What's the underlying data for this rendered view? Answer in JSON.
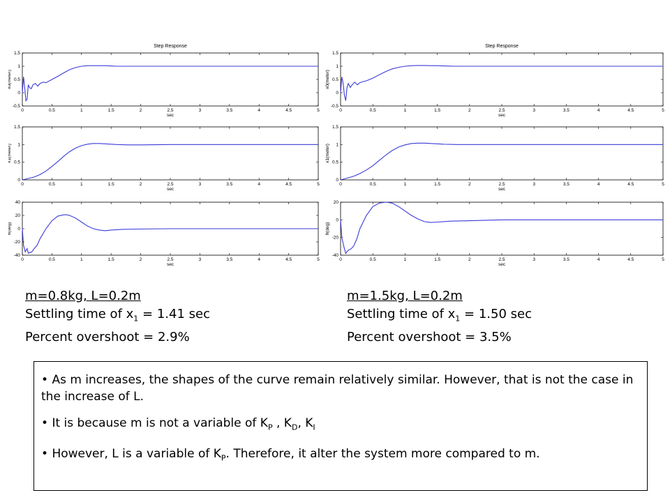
{
  "chart_data": [
    {
      "type": "line",
      "title": "Step Response",
      "panels": [
        {
          "ylabel": "x0(meter)",
          "xlabel": "sec",
          "xlim": [
            0,
            5
          ],
          "ylim": [
            -0.5,
            1.5
          ],
          "xticks": [
            "0",
            "0.5",
            "1",
            "1.5",
            "2",
            "2.5",
            "3",
            "3.5",
            "4",
            "4.5",
            "5"
          ],
          "yticks": [
            "-0.5",
            "0",
            "0.5",
            "1",
            "1.5"
          ],
          "series": [
            {
              "x": [
                0,
                0.02,
                0.04,
                0.06,
                0.08,
                0.1,
                0.12,
                0.15,
                0.18,
                0.22,
                0.26,
                0.3,
                0.35,
                0.4,
                0.5,
                0.6,
                0.7,
                0.8,
                0.9,
                1.0,
                1.1,
                1.2,
                1.3,
                1.4,
                1.5,
                1.6,
                1.8,
                2.0,
                2.5,
                3,
                3.5,
                4,
                4.5,
                5
              ],
              "y": [
                0,
                0.6,
                0.2,
                -0.3,
                -0.25,
                0.3,
                0.2,
                0.15,
                0.3,
                0.35,
                0.25,
                0.35,
                0.4,
                0.38,
                0.5,
                0.62,
                0.75,
                0.87,
                0.95,
                1.0,
                1.02,
                1.02,
                1.02,
                1.02,
                1.01,
                1.0,
                1.0,
                1.0,
                1.0,
                1.0,
                1.0,
                1.0,
                1.0,
                1.0
              ]
            }
          ]
        },
        {
          "ylabel": "x1(meter)",
          "xlabel": "sec",
          "xlim": [
            0,
            5
          ],
          "ylim": [
            0,
            1.5
          ],
          "xticks": [
            "0",
            "0.5",
            "1",
            "1.5",
            "2",
            "2.5",
            "3",
            "3.5",
            "4",
            "4.5",
            "5"
          ],
          "yticks": [
            "0",
            "0.5",
            "1",
            "1.5"
          ],
          "series": [
            {
              "x": [
                0,
                0.1,
                0.2,
                0.3,
                0.4,
                0.5,
                0.6,
                0.7,
                0.8,
                0.9,
                1.0,
                1.1,
                1.2,
                1.3,
                1.4,
                1.5,
                1.6,
                1.8,
                2.0,
                2.5,
                3,
                3.5,
                4,
                4.5,
                5
              ],
              "y": [
                0,
                0.04,
                0.08,
                0.15,
                0.25,
                0.38,
                0.52,
                0.67,
                0.8,
                0.9,
                0.97,
                1.01,
                1.03,
                1.03,
                1.02,
                1.01,
                1.0,
                0.99,
                0.99,
                1.0,
                1.0,
                1.0,
                1.0,
                1.0,
                1.0
              ]
            }
          ]
        },
        {
          "ylabel": "θ(deg)",
          "xlabel": "sec",
          "xlim": [
            0,
            5
          ],
          "ylim": [
            -40,
            40
          ],
          "xticks": [
            "0",
            "0.5",
            "1",
            "1.5",
            "2",
            "2.5",
            "3",
            "3.5",
            "4",
            "4.5",
            "5"
          ],
          "yticks": [
            "-40",
            "-20",
            "0",
            "20",
            "40"
          ],
          "series": [
            {
              "x": [
                0,
                0.02,
                0.05,
                0.08,
                0.1,
                0.13,
                0.16,
                0.2,
                0.25,
                0.3,
                0.4,
                0.5,
                0.6,
                0.7,
                0.75,
                0.8,
                0.9,
                1.0,
                1.1,
                1.2,
                1.3,
                1.4,
                1.5,
                1.7,
                2,
                2.5,
                3,
                3.5,
                4,
                4.5,
                5
              ],
              "y": [
                0,
                -25,
                -35,
                -30,
                -37,
                -36,
                -35,
                -30,
                -25,
                -15,
                0,
                12,
                19,
                21,
                21,
                20,
                16,
                10,
                4,
                0,
                -2,
                -3,
                -2,
                -1,
                -0.5,
                0,
                0,
                0,
                0,
                0,
                0
              ]
            }
          ]
        }
      ]
    },
    {
      "type": "line",
      "title": "Step Response",
      "panels": [
        {
          "ylabel": "x0(meter)",
          "xlabel": "sec",
          "xlim": [
            0,
            5
          ],
          "ylim": [
            -0.5,
            1.5
          ],
          "xticks": [
            "0",
            "0.5",
            "1",
            "1.5",
            "2",
            "2.5",
            "3",
            "3.5",
            "4",
            "4.5",
            "5"
          ],
          "yticks": [
            "-0.5",
            "0",
            "0.5",
            "1",
            "1.5"
          ],
          "series": [
            {
              "x": [
                0,
                0.02,
                0.04,
                0.06,
                0.08,
                0.1,
                0.12,
                0.15,
                0.18,
                0.22,
                0.26,
                0.3,
                0.35,
                0.4,
                0.5,
                0.6,
                0.7,
                0.8,
                0.9,
                1.0,
                1.1,
                1.2,
                1.3,
                1.4,
                1.5,
                1.6,
                1.8,
                2.0,
                2.5,
                3,
                3.5,
                4,
                4.5,
                5
              ],
              "y": [
                0,
                0.6,
                0.35,
                -0.1,
                -0.3,
                0.2,
                0.35,
                0.2,
                0.3,
                0.4,
                0.3,
                0.38,
                0.42,
                0.45,
                0.55,
                0.68,
                0.8,
                0.9,
                0.96,
                1.0,
                1.02,
                1.03,
                1.03,
                1.02,
                1.02,
                1.01,
                1.0,
                1.0,
                1.0,
                1.0,
                1.0,
                1.0,
                1.0,
                1.0
              ]
            }
          ]
        },
        {
          "ylabel": "x1(meter)",
          "xlabel": "sec",
          "xlim": [
            0,
            5
          ],
          "ylim": [
            0,
            1.5
          ],
          "xticks": [
            "0",
            "0.5",
            "1",
            "1.5",
            "2",
            "2.5",
            "3",
            "3.5",
            "4",
            "4.5",
            "5"
          ],
          "yticks": [
            "0",
            "0.5",
            "1",
            "1.5"
          ],
          "series": [
            {
              "x": [
                0,
                0.1,
                0.2,
                0.3,
                0.4,
                0.5,
                0.6,
                0.7,
                0.8,
                0.9,
                1.0,
                1.1,
                1.2,
                1.3,
                1.4,
                1.5,
                1.6,
                1.8,
                2.0,
                2.5,
                3,
                3.5,
                4,
                4.5,
                5
              ],
              "y": [
                0,
                0.05,
                0.1,
                0.18,
                0.28,
                0.4,
                0.55,
                0.7,
                0.83,
                0.93,
                0.99,
                1.03,
                1.04,
                1.04,
                1.03,
                1.02,
                1.01,
                1.0,
                1.0,
                1.0,
                1.0,
                1.0,
                1.0,
                1.0,
                1.0
              ]
            }
          ]
        },
        {
          "ylabel": "θ(deg)",
          "xlabel": "sec",
          "xlim": [
            0,
            5
          ],
          "ylim": [
            -40,
            20
          ],
          "xticks": [
            "0",
            "0.5",
            "1",
            "1.5",
            "2",
            "2.5",
            "3",
            "3.5",
            "4",
            "4.5",
            "5"
          ],
          "yticks": [
            "-40",
            "-20",
            "0",
            "20"
          ],
          "series": [
            {
              "x": [
                0,
                0.02,
                0.05,
                0.08,
                0.1,
                0.13,
                0.16,
                0.2,
                0.25,
                0.3,
                0.4,
                0.5,
                0.6,
                0.7,
                0.75,
                0.8,
                0.9,
                1.0,
                1.1,
                1.2,
                1.3,
                1.4,
                1.5,
                1.7,
                2,
                2.5,
                3,
                3.5,
                4,
                4.5,
                5
              ],
              "y": [
                0,
                -20,
                -30,
                -38,
                -36,
                -34,
                -33,
                -30,
                -22,
                -10,
                5,
                15,
                19,
                20,
                19.5,
                19,
                15,
                10,
                5,
                1,
                -2,
                -3,
                -2.5,
                -1.5,
                -1,
                0,
                0,
                0,
                0,
                0,
                0
              ]
            }
          ]
        }
      ]
    }
  ],
  "captions": {
    "left": {
      "line1": "m=0.8kg,   L=0.2m",
      "line2_pre": "Settling time of x",
      "line2_sub": "1",
      "line2_post": " = 1.41 sec",
      "line3": "Percent overshoot = 2.9%"
    },
    "right": {
      "line1": "m=1.5kg,   L=0.2m",
      "line2_pre": "Settling time of x",
      "line2_sub": "1",
      "line2_post": " = 1.50 sec",
      "line3": "Percent overshoot = 3.5%"
    }
  },
  "notes": {
    "b1": "As m increases, the shapes of the curve remain relatively similar. However, that is not the case in the increase of L.",
    "b2_pre": "It is because m is not a variable of K",
    "b2_sub1": "P",
    "b2_mid1": " , K",
    "b2_sub2": "D",
    "b2_mid2": ", K",
    "b2_sub3": "I",
    "b3_pre": "However, L is a variable of K",
    "b3_sub": "P",
    "b3_post": ". Therefore, it alter the system more compared to m."
  },
  "colors": {
    "line": "#3b3bd8",
    "axis": "#000000"
  }
}
